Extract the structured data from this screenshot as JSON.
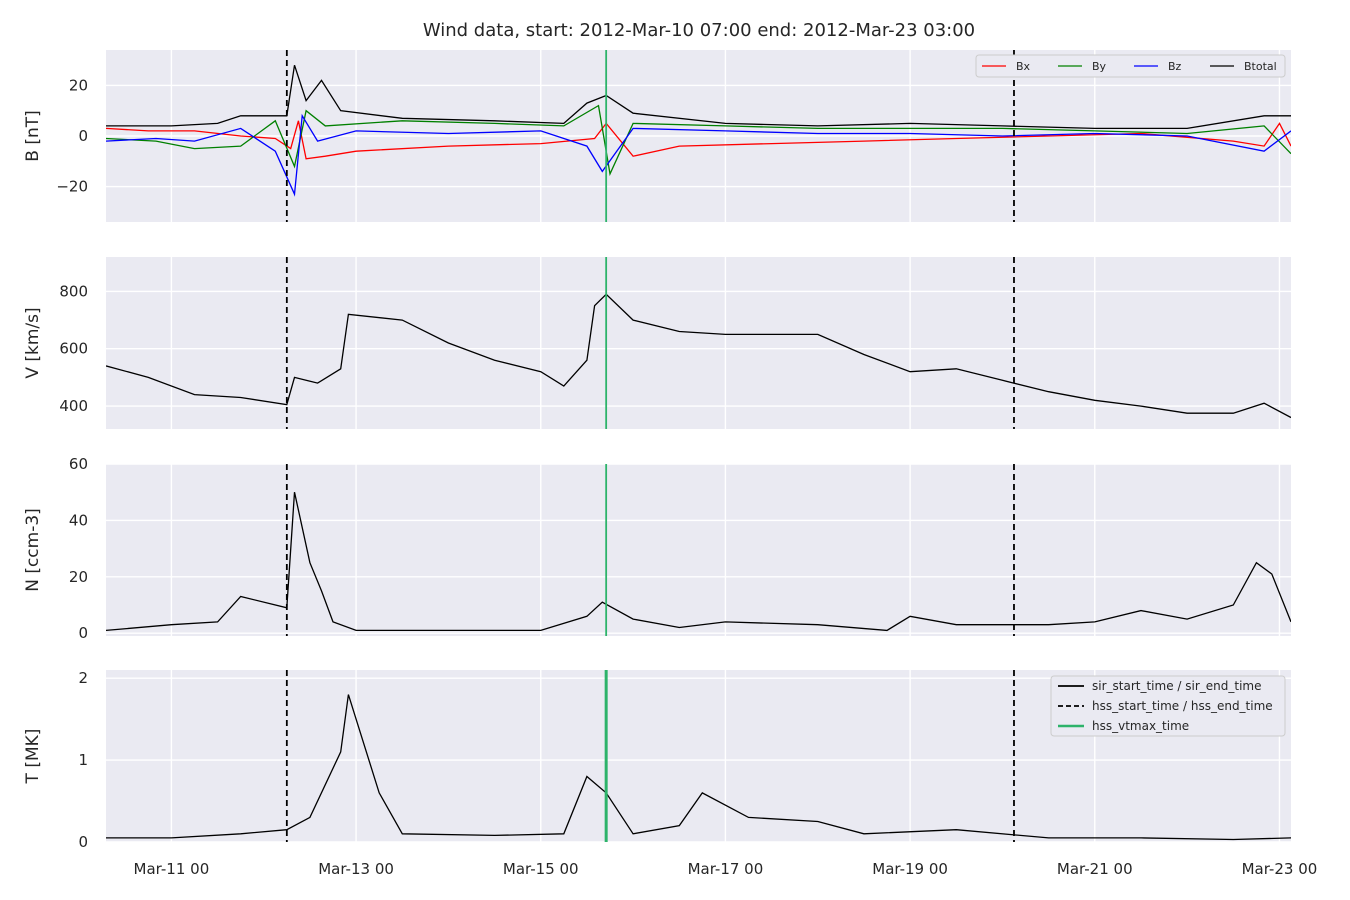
{
  "chart_data": {
    "type": "line",
    "title": "Wind data, start: 2012-Mar-10 07:00  end: 2012-Mar-23 03:00",
    "x_unit": "time",
    "x_range": [
      "2012-03-10 07:00",
      "2012-03-23 03:00"
    ],
    "x_ticks": [
      {
        "value": "2012-03-11 00:00",
        "label": "Mar-11 00"
      },
      {
        "value": "2012-03-13 00:00",
        "label": "Mar-13 00"
      },
      {
        "value": "2012-03-15 00:00",
        "label": "Mar-15 00"
      },
      {
        "value": "2012-03-17 00:00",
        "label": "Mar-17 00"
      },
      {
        "value": "2012-03-19 00:00",
        "label": "Mar-19 00"
      },
      {
        "value": "2012-03-21 00:00",
        "label": "Mar-21 00"
      },
      {
        "value": "2012-03-23 00:00",
        "label": "Mar-23 00"
      }
    ],
    "grid": true,
    "markers": {
      "hss_start_time": "2012-03-12 06:00",
      "hss_end_time": "2012-03-20 03:00",
      "hss_vtmax_time": "2012-03-15 17:00"
    },
    "panels": [
      {
        "ylabel": "B [nT]",
        "ylim": [
          -34,
          34
        ],
        "yticks": [
          {
            "value": 20,
            "label": "20"
          },
          {
            "value": 0,
            "label": "0"
          },
          {
            "value": -20,
            "label": "−20"
          }
        ],
        "legend": {
          "position": "top-right",
          "columns": 4
        },
        "series": [
          {
            "name": "Bx",
            "color": "#ff0000",
            "points": [
              [
                "2012-03-10 07:00",
                3
              ],
              [
                "2012-03-10 18:00",
                2
              ],
              [
                "2012-03-11 06:00",
                2
              ],
              [
                "2012-03-11 18:00",
                0
              ],
              [
                "2012-03-12 03:00",
                -1
              ],
              [
                "2012-03-12 07:00",
                -5
              ],
              [
                "2012-03-12 09:00",
                6
              ],
              [
                "2012-03-12 11:00",
                -9
              ],
              [
                "2012-03-12 16:00",
                -8
              ],
              [
                "2012-03-13 00:00",
                -6
              ],
              [
                "2012-03-14 00:00",
                -4
              ],
              [
                "2012-03-15 00:00",
                -3
              ],
              [
                "2012-03-15 14:00",
                -1
              ],
              [
                "2012-03-15 17:00",
                5
              ],
              [
                "2012-03-16 00:00",
                -8
              ],
              [
                "2012-03-16 12:00",
                -4
              ],
              [
                "2012-03-17 12:00",
                -3
              ],
              [
                "2012-03-18 12:00",
                -2
              ],
              [
                "2012-03-19 12:00",
                -1
              ],
              [
                "2012-03-20 12:00",
                0
              ],
              [
                "2012-03-21 12:00",
                1
              ],
              [
                "2012-03-22 12:00",
                -2
              ],
              [
                "2012-03-22 20:00",
                -4
              ],
              [
                "2012-03-23 00:00",
                5
              ],
              [
                "2012-03-23 03:00",
                -4
              ]
            ]
          },
          {
            "name": "By",
            "color": "#008000",
            "points": [
              [
                "2012-03-10 07:00",
                -1
              ],
              [
                "2012-03-10 20:00",
                -2
              ],
              [
                "2012-03-11 06:00",
                -5
              ],
              [
                "2012-03-11 18:00",
                -4
              ],
              [
                "2012-03-12 03:00",
                6
              ],
              [
                "2012-03-12 08:00",
                -12
              ],
              [
                "2012-03-12 11:00",
                10
              ],
              [
                "2012-03-12 16:00",
                4
              ],
              [
                "2012-03-13 12:00",
                6
              ],
              [
                "2012-03-14 12:00",
                5
              ],
              [
                "2012-03-15 06:00",
                4
              ],
              [
                "2012-03-15 15:00",
                12
              ],
              [
                "2012-03-15 18:00",
                -15
              ],
              [
                "2012-03-16 00:00",
                5
              ],
              [
                "2012-03-17 00:00",
                4
              ],
              [
                "2012-03-18 00:00",
                3
              ],
              [
                "2012-03-19 00:00",
                3
              ],
              [
                "2012-03-20 00:00",
                3
              ],
              [
                "2012-03-21 00:00",
                2
              ],
              [
                "2012-03-22 00:00",
                1
              ],
              [
                "2012-03-22 20:00",
                4
              ],
              [
                "2012-03-23 03:00",
                -7
              ]
            ]
          },
          {
            "name": "Bz",
            "color": "#0000ff",
            "points": [
              [
                "2012-03-10 07:00",
                -2
              ],
              [
                "2012-03-10 20:00",
                -1
              ],
              [
                "2012-03-11 06:00",
                -2
              ],
              [
                "2012-03-11 18:00",
                3
              ],
              [
                "2012-03-12 03:00",
                -6
              ],
              [
                "2012-03-12 08:00",
                -23
              ],
              [
                "2012-03-12 10:00",
                8
              ],
              [
                "2012-03-12 14:00",
                -2
              ],
              [
                "2012-03-13 00:00",
                2
              ],
              [
                "2012-03-14 00:00",
                1
              ],
              [
                "2012-03-15 00:00",
                2
              ],
              [
                "2012-03-15 12:00",
                -4
              ],
              [
                "2012-03-15 16:00",
                -14
              ],
              [
                "2012-03-16 00:00",
                3
              ],
              [
                "2012-03-17 00:00",
                2
              ],
              [
                "2012-03-18 00:00",
                1
              ],
              [
                "2012-03-19 00:00",
                1
              ],
              [
                "2012-03-20 00:00",
                0
              ],
              [
                "2012-03-21 00:00",
                1
              ],
              [
                "2012-03-22 00:00",
                0
              ],
              [
                "2012-03-22 20:00",
                -6
              ],
              [
                "2012-03-23 03:00",
                2
              ]
            ]
          },
          {
            "name": "Btotal",
            "color": "#000000",
            "points": [
              [
                "2012-03-10 07:00",
                4
              ],
              [
                "2012-03-11 00:00",
                4
              ],
              [
                "2012-03-11 12:00",
                5
              ],
              [
                "2012-03-11 18:00",
                8
              ],
              [
                "2012-03-12 06:00",
                8
              ],
              [
                "2012-03-12 08:00",
                28
              ],
              [
                "2012-03-12 11:00",
                14
              ],
              [
                "2012-03-12 15:00",
                22
              ],
              [
                "2012-03-12 20:00",
                10
              ],
              [
                "2012-03-13 12:00",
                7
              ],
              [
                "2012-03-14 12:00",
                6
              ],
              [
                "2012-03-15 06:00",
                5
              ],
              [
                "2012-03-15 12:00",
                13
              ],
              [
                "2012-03-15 17:00",
                16
              ],
              [
                "2012-03-16 00:00",
                9
              ],
              [
                "2012-03-17 00:00",
                5
              ],
              [
                "2012-03-18 00:00",
                4
              ],
              [
                "2012-03-19 00:00",
                5
              ],
              [
                "2012-03-20 00:00",
                4
              ],
              [
                "2012-03-21 00:00",
                3
              ],
              [
                "2012-03-22 00:00",
                3
              ],
              [
                "2012-03-22 20:00",
                8
              ],
              [
                "2012-03-23 03:00",
                8
              ]
            ]
          }
        ]
      },
      {
        "ylabel": "V [km/s]",
        "ylim": [
          320,
          920
        ],
        "yticks": [
          {
            "value": 800,
            "label": "800"
          },
          {
            "value": 600,
            "label": "600"
          },
          {
            "value": 400,
            "label": "400"
          }
        ],
        "series": [
          {
            "name": "",
            "color": "#000000",
            "points": [
              [
                "2012-03-10 07:00",
                540
              ],
              [
                "2012-03-10 18:00",
                500
              ],
              [
                "2012-03-11 06:00",
                440
              ],
              [
                "2012-03-11 18:00",
                430
              ],
              [
                "2012-03-12 06:00",
                405
              ],
              [
                "2012-03-12 08:00",
                500
              ],
              [
                "2012-03-12 14:00",
                480
              ],
              [
                "2012-03-12 20:00",
                530
              ],
              [
                "2012-03-12 22:00",
                720
              ],
              [
                "2012-03-13 12:00",
                700
              ],
              [
                "2012-03-14 00:00",
                620
              ],
              [
                "2012-03-14 12:00",
                560
              ],
              [
                "2012-03-15 00:00",
                520
              ],
              [
                "2012-03-15 06:00",
                470
              ],
              [
                "2012-03-15 12:00",
                560
              ],
              [
                "2012-03-15 14:00",
                750
              ],
              [
                "2012-03-15 17:00",
                790
              ],
              [
                "2012-03-16 00:00",
                700
              ],
              [
                "2012-03-16 12:00",
                660
              ],
              [
                "2012-03-17 00:00",
                650
              ],
              [
                "2012-03-18 00:00",
                650
              ],
              [
                "2012-03-18 12:00",
                580
              ],
              [
                "2012-03-19 00:00",
                520
              ],
              [
                "2012-03-19 12:00",
                530
              ],
              [
                "2012-03-20 00:00",
                490
              ],
              [
                "2012-03-20 12:00",
                450
              ],
              [
                "2012-03-21 00:00",
                420
              ],
              [
                "2012-03-21 12:00",
                400
              ],
              [
                "2012-03-22 00:00",
                375
              ],
              [
                "2012-03-22 12:00",
                375
              ],
              [
                "2012-03-22 20:00",
                410
              ],
              [
                "2012-03-23 03:00",
                360
              ]
            ]
          }
        ]
      },
      {
        "ylabel": "N [ccm-3]",
        "ylim": [
          -1,
          60
        ],
        "yticks": [
          {
            "value": 60,
            "label": "60"
          },
          {
            "value": 40,
            "label": "40"
          },
          {
            "value": 20,
            "label": "20"
          },
          {
            "value": 0,
            "label": "0"
          }
        ],
        "series": [
          {
            "name": "",
            "color": "#000000",
            "points": [
              [
                "2012-03-10 07:00",
                1
              ],
              [
                "2012-03-11 00:00",
                3
              ],
              [
                "2012-03-11 12:00",
                4
              ],
              [
                "2012-03-11 18:00",
                13
              ],
              [
                "2012-03-12 06:00",
                9
              ],
              [
                "2012-03-12 08:00",
                50
              ],
              [
                "2012-03-12 12:00",
                25
              ],
              [
                "2012-03-12 15:00",
                15
              ],
              [
                "2012-03-12 18:00",
                4
              ],
              [
                "2012-03-13 00:00",
                1
              ],
              [
                "2012-03-14 00:00",
                1
              ],
              [
                "2012-03-15 00:00",
                1
              ],
              [
                "2012-03-15 12:00",
                6
              ],
              [
                "2012-03-15 16:00",
                11
              ],
              [
                "2012-03-16 00:00",
                5
              ],
              [
                "2012-03-16 12:00",
                2
              ],
              [
                "2012-03-17 00:00",
                4
              ],
              [
                "2012-03-18 00:00",
                3
              ],
              [
                "2012-03-18 18:00",
                1
              ],
              [
                "2012-03-19 00:00",
                6
              ],
              [
                "2012-03-19 12:00",
                3
              ],
              [
                "2012-03-20 12:00",
                3
              ],
              [
                "2012-03-21 00:00",
                4
              ],
              [
                "2012-03-21 12:00",
                8
              ],
              [
                "2012-03-22 00:00",
                5
              ],
              [
                "2012-03-22 12:00",
                10
              ],
              [
                "2012-03-22 18:00",
                25
              ],
              [
                "2012-03-22 22:00",
                21
              ],
              [
                "2012-03-23 03:00",
                4
              ]
            ]
          }
        ]
      },
      {
        "ylabel": "T [MK]",
        "ylim": [
          0,
          2.1
        ],
        "yticks": [
          {
            "value": 2,
            "label": "2"
          },
          {
            "value": 1,
            "label": "1"
          },
          {
            "value": 0,
            "label": "0"
          }
        ],
        "legend": {
          "position": "top-right",
          "columns": 1
        },
        "series": [
          {
            "name": "",
            "color": "#000000",
            "points": [
              [
                "2012-03-10 07:00",
                0.05
              ],
              [
                "2012-03-11 00:00",
                0.05
              ],
              [
                "2012-03-11 18:00",
                0.1
              ],
              [
                "2012-03-12 06:00",
                0.15
              ],
              [
                "2012-03-12 12:00",
                0.3
              ],
              [
                "2012-03-12 20:00",
                1.1
              ],
              [
                "2012-03-12 22:00",
                1.8
              ],
              [
                "2012-03-13 06:00",
                0.6
              ],
              [
                "2012-03-13 12:00",
                0.1
              ],
              [
                "2012-03-14 12:00",
                0.08
              ],
              [
                "2012-03-15 06:00",
                0.1
              ],
              [
                "2012-03-15 12:00",
                0.8
              ],
              [
                "2012-03-15 17:00",
                0.6
              ],
              [
                "2012-03-16 00:00",
                0.1
              ],
              [
                "2012-03-16 12:00",
                0.2
              ],
              [
                "2012-03-16 18:00",
                0.6
              ],
              [
                "2012-03-17 06:00",
                0.3
              ],
              [
                "2012-03-18 00:00",
                0.25
              ],
              [
                "2012-03-18 12:00",
                0.1
              ],
              [
                "2012-03-19 12:00",
                0.15
              ],
              [
                "2012-03-20 12:00",
                0.05
              ],
              [
                "2012-03-21 12:00",
                0.05
              ],
              [
                "2012-03-22 12:00",
                0.03
              ],
              [
                "2012-03-23 03:00",
                0.05
              ]
            ]
          }
        ]
      }
    ],
    "marker_legend": [
      {
        "label": "sir_start_time / sir_end_time",
        "style": "solid",
        "color": "#000000"
      },
      {
        "label": "hss_start_time / hss_end_time",
        "style": "dashed",
        "color": "#000000"
      },
      {
        "label": "hss_vtmax_time",
        "style": "solid",
        "color": "#2db36a"
      }
    ]
  }
}
